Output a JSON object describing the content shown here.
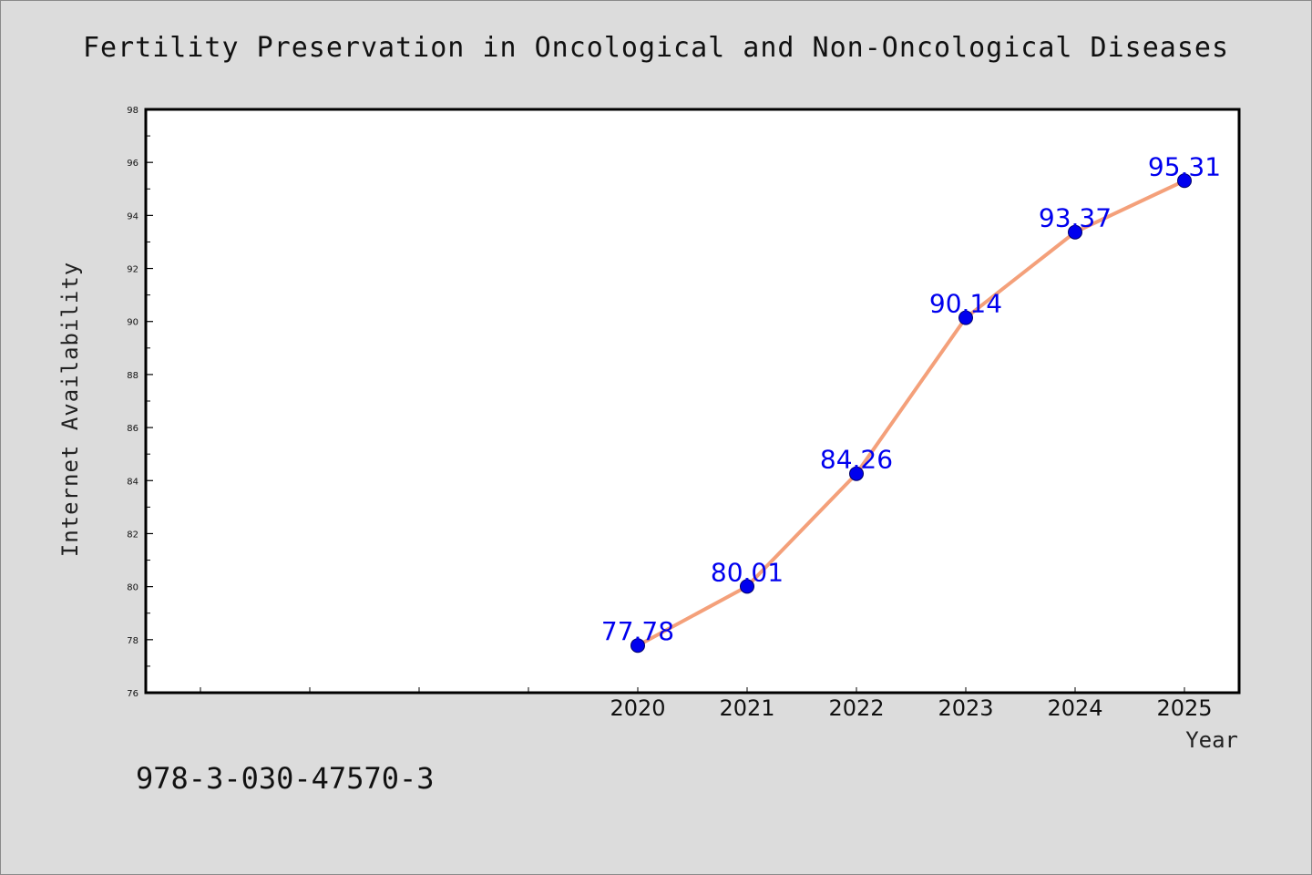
{
  "chart_data": {
    "type": "line",
    "title": "Fertility Preservation in Oncological and Non-Oncological Diseases",
    "xlabel": "Year",
    "ylabel": "Internet Availability",
    "categories": [
      "2020",
      "2021",
      "2022",
      "2023",
      "2024",
      "2025"
    ],
    "series": [
      {
        "values": [
          77.78,
          80.01,
          84.26,
          90.14,
          93.37,
          95.31
        ]
      }
    ],
    "value_labels": [
      "77.78",
      "80.01",
      "84.26",
      "90.14",
      "93.37",
      "95.31"
    ],
    "ylim": [
      76,
      98
    ],
    "yticks": [
      76,
      78,
      80,
      82,
      84,
      86,
      88,
      90,
      92,
      94,
      96,
      98
    ],
    "grid": false,
    "legend": "none",
    "line_color": "#f4a07a",
    "marker_color": "#0000ee",
    "label_color": "#0000ee"
  },
  "footer": {
    "isbn": "978-3-030-47570-3"
  }
}
